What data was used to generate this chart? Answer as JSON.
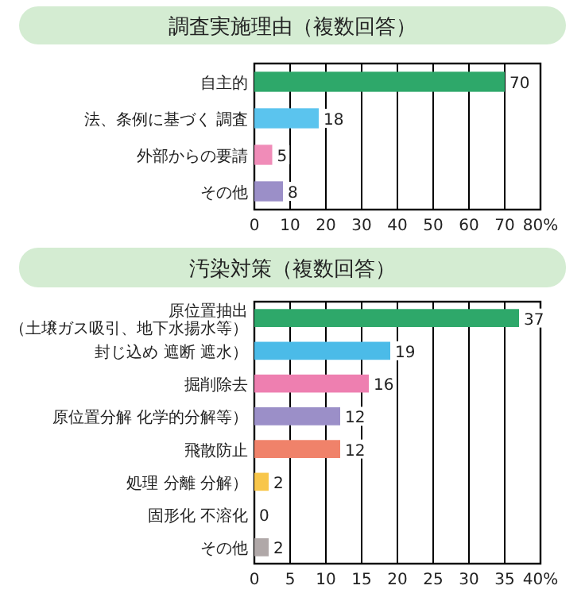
{
  "chart_data": [
    {
      "type": "bar",
      "orientation": "horizontal",
      "title": "調査実施理由（複数回答）",
      "categories": [
        "自主的",
        "法、条例に基づく 調査",
        "外部からの要請",
        "その他"
      ],
      "values": [
        70,
        18,
        5,
        8
      ],
      "colors": [
        "#2ea86a",
        "#5bc4ee",
        "#f08cb8",
        "#9b8fc8"
      ],
      "xlim": [
        0,
        80
      ],
      "xticks": [
        0,
        10,
        20,
        30,
        40,
        50,
        60,
        70,
        {
          "value": 80,
          "label": "80%"
        }
      ],
      "grid": "x",
      "data_labels": true
    },
    {
      "type": "bar",
      "orientation": "horizontal",
      "title": "汚染対策（複数回答）",
      "categories": [
        "原位置抽出（土壌ガス吸引、地下水揚水等）",
        "封じ込め 遮断 遮水）",
        "掘削除去",
        "原位置分解 化学的分解等）",
        "飛散防止",
        "処理 分離 分解）",
        "固形化 不溶化",
        "その他"
      ],
      "values": [
        37,
        19,
        16,
        12,
        12,
        2,
        0,
        2
      ],
      "colors": [
        "#2ea86a",
        "#4bbbe8",
        "#ee7fb0",
        "#9b8fc8",
        "#f0826a",
        "#f8c64a",
        "#9fc96a",
        "#b0a8a8"
      ],
      "xlim": [
        0,
        40
      ],
      "xticks": [
        0,
        5,
        10,
        15,
        20,
        25,
        30,
        35,
        {
          "value": 40,
          "label": "40%"
        }
      ],
      "grid": "x",
      "data_labels": true
    }
  ]
}
